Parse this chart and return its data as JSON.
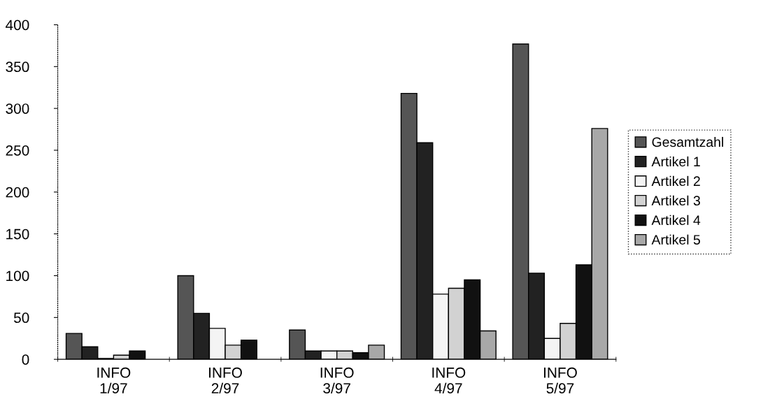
{
  "chart_data": {
    "type": "bar",
    "categories": [
      "INFO\n1/97",
      "INFO\n2/97",
      "INFO\n3/97",
      "INFO\n4/97",
      "INFO\n5/97"
    ],
    "series": [
      {
        "name": "Gesamtzahl",
        "color": "#555555",
        "values": [
          31,
          100,
          35,
          318,
          377
        ]
      },
      {
        "name": "Artikel 1",
        "color": "#222222",
        "values": [
          15,
          55,
          10,
          259,
          103
        ]
      },
      {
        "name": "Artikel 2",
        "color": "#f4f4f4",
        "values": [
          1,
          37,
          10,
          78,
          25
        ]
      },
      {
        "name": "Artikel 3",
        "color": "#d2d2d2",
        "values": [
          5,
          17,
          10,
          85,
          43
        ]
      },
      {
        "name": "Artikel 4",
        "color": "#111111",
        "values": [
          10,
          23,
          8,
          95,
          113
        ]
      },
      {
        "name": "Artikel 5",
        "color": "#a8a8a8",
        "values": [
          null,
          null,
          17,
          34,
          276
        ]
      }
    ],
    "ylim": [
      0,
      400
    ],
    "yticks": [
      0,
      50,
      100,
      150,
      200,
      250,
      300,
      350,
      400
    ],
    "grid": false,
    "legend": "right"
  }
}
